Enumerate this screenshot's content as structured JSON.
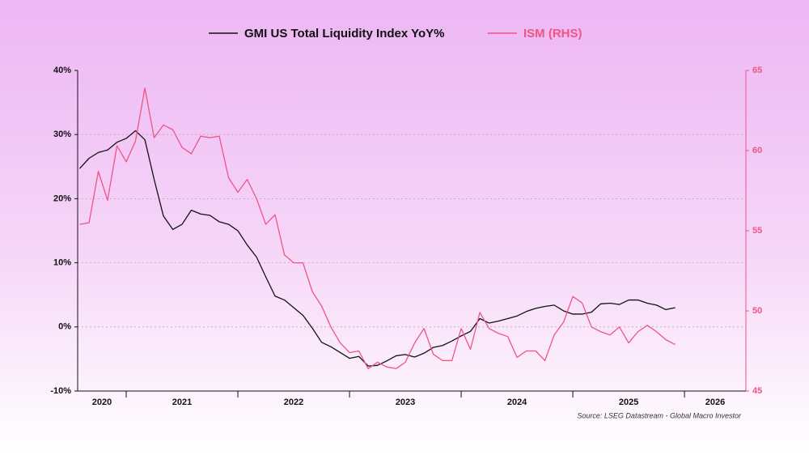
{
  "chart_data": {
    "type": "line",
    "legend": "top",
    "source": "Source: LSEG Datastream - Global Macro Investor",
    "x": [
      2020.583,
      2020.667,
      2020.75,
      2020.833,
      2020.917,
      2021.0,
      2021.083,
      2021.167,
      2021.25,
      2021.333,
      2021.417,
      2021.5,
      2021.583,
      2021.667,
      2021.75,
      2021.833,
      2021.917,
      2022.0,
      2022.083,
      2022.167,
      2022.25,
      2022.333,
      2022.417,
      2022.5,
      2022.583,
      2022.667,
      2022.75,
      2022.833,
      2022.917,
      2023.0,
      2023.083,
      2023.167,
      2023.25,
      2023.333,
      2023.417,
      2023.5,
      2023.583,
      2023.667,
      2023.75,
      2023.833,
      2023.917,
      2024.0,
      2024.083,
      2024.167,
      2024.25,
      2024.333,
      2024.417,
      2024.5,
      2024.583,
      2024.667,
      2024.75,
      2024.833,
      2024.917,
      2025.0,
      2025.083,
      2025.167,
      2025.25,
      2025.333,
      2025.417,
      2025.5,
      2025.583,
      2025.667,
      2025.75,
      2025.833,
      2025.917
    ],
    "xlim": [
      2020.565,
      2026.55
    ],
    "xticks": [
      2021,
      2022,
      2023,
      2024,
      2025,
      2026
    ],
    "xtick_labels": [
      "2020",
      "2021",
      "2022",
      "2023",
      "2024",
      "2025",
      "2026"
    ],
    "ylim": [
      -10,
      40
    ],
    "yticks": [
      {
        "value": -10,
        "label": "-10%"
      },
      {
        "value": 0,
        "label": "0%"
      },
      {
        "value": 10,
        "label": "10%"
      },
      {
        "value": 20,
        "label": "20%"
      },
      {
        "value": 30,
        "label": "30%"
      },
      {
        "value": 40,
        "label": "40%"
      }
    ],
    "y2lim": [
      45,
      65
    ],
    "y2ticks": [
      45,
      50,
      55,
      60,
      65
    ],
    "grid": true,
    "series": [
      {
        "name": "GMI US Total Liquidity Index YoY%",
        "color": "#111111",
        "values": [
          24.7,
          26.3,
          27.2,
          27.6,
          28.8,
          29.4,
          30.6,
          29.2,
          23.0,
          17.3,
          15.2,
          16.0,
          18.2,
          17.6,
          17.4,
          16.4,
          16.0,
          15.0,
          12.8,
          10.9,
          7.8,
          4.8,
          4.2,
          3.0,
          1.8,
          -0.2,
          -2.4,
          -3.1,
          -4.0,
          -4.9,
          -4.6,
          -6.1,
          -6.0,
          -5.3,
          -4.5,
          -4.3,
          -4.7,
          -4.1,
          -3.2,
          -2.9,
          -2.2,
          -1.4,
          -0.7,
          1.3,
          0.6,
          0.9,
          1.3,
          1.7,
          2.4,
          2.9,
          3.2,
          3.4,
          2.5,
          2.0,
          2.0,
          2.3,
          3.6,
          3.7,
          3.5,
          4.2,
          4.2,
          3.7,
          3.4,
          2.7,
          3.0
        ]
      },
      {
        "name": "ISM (RHS)",
        "color": "#ee5584",
        "axis": "y2",
        "values": [
          55.4,
          55.5,
          58.7,
          56.9,
          60.3,
          59.3,
          60.6,
          63.9,
          60.8,
          61.6,
          61.3,
          60.2,
          59.8,
          60.9,
          60.8,
          60.9,
          58.3,
          57.4,
          58.2,
          57.0,
          55.4,
          56.0,
          53.5,
          53.0,
          53.0,
          51.2,
          50.3,
          49.0,
          48.0,
          47.4,
          47.5,
          46.4,
          46.8,
          46.5,
          46.4,
          46.8,
          48.0,
          48.9,
          47.3,
          46.9,
          46.9,
          48.9,
          47.6,
          49.9,
          48.9,
          48.6,
          48.4,
          47.1,
          47.5,
          47.5,
          46.9,
          48.5,
          49.3,
          50.9,
          50.5,
          49.0,
          48.7,
          48.5,
          49.0,
          48.0,
          48.7,
          49.1,
          48.7,
          48.2,
          47.9
        ]
      }
    ]
  }
}
